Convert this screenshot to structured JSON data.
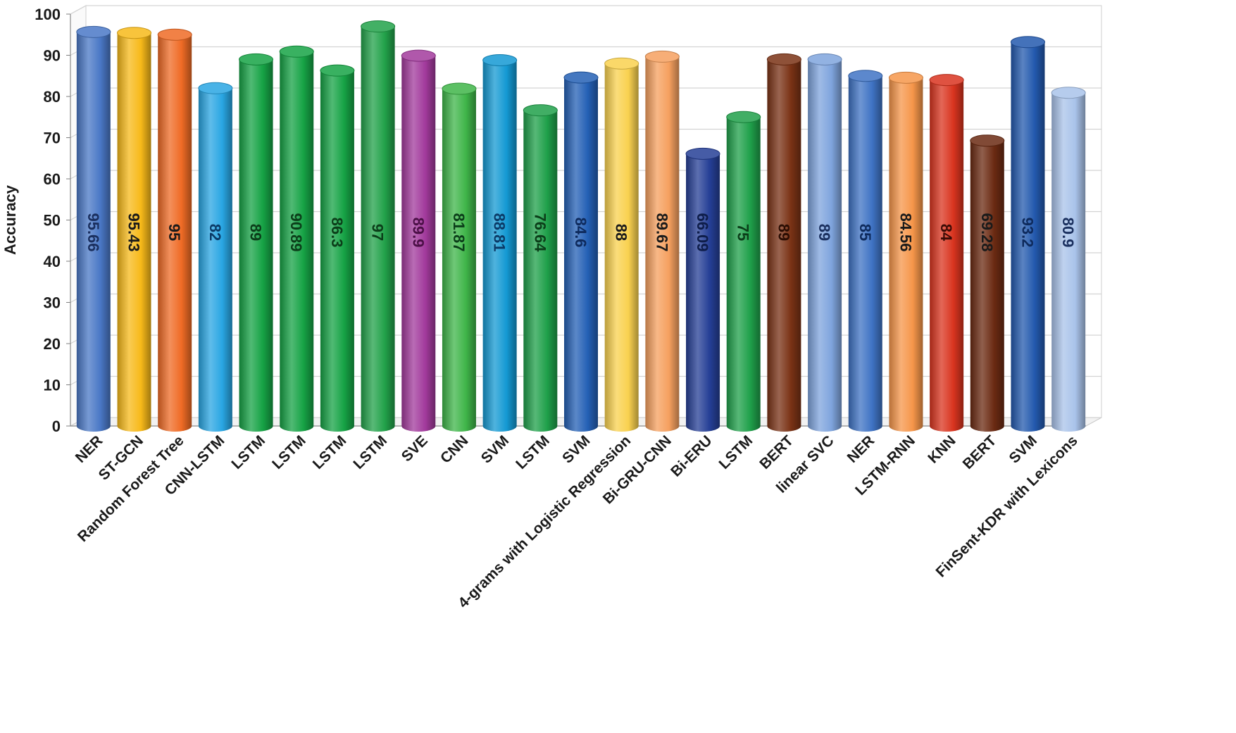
{
  "chart_data": {
    "type": "bar",
    "style": "3d-cylinder",
    "title": "",
    "xlabel": "",
    "ylabel": "Accuracy",
    "ylim": [
      0,
      100
    ],
    "yticks": [
      0,
      10,
      20,
      30,
      40,
      50,
      60,
      70,
      80,
      90,
      100
    ],
    "yticks_text": [
      "0",
      "10",
      "20",
      "30",
      "40",
      "50",
      "60",
      "70",
      "80",
      "90",
      "100"
    ],
    "grid": true,
    "legend": "none",
    "categories": [
      "NER",
      "ST-GCN",
      "Random Forest Tree",
      "CNN-LSTM",
      "LSTM",
      "LSTM",
      "LSTM",
      "LSTM",
      "SVE",
      "CNN",
      "SVM",
      "LSTM",
      "SVM",
      "4-grams with Logistic Regression",
      "Bi-GRU-CNN",
      "Bi-ERU",
      "LSTM",
      "BERT",
      "linear SVC",
      "NER",
      "LSTM-RNN",
      "KNN",
      "BERT",
      "SVM",
      "FinSent-KDR with Lexicons"
    ],
    "values": [
      95.66,
      95.43,
      95,
      82,
      89,
      90.89,
      86.3,
      97,
      89.9,
      81.87,
      88.81,
      76.64,
      84.6,
      88,
      89.67,
      66.09,
      75,
      89,
      89,
      85,
      84.56,
      84,
      69.28,
      93.2,
      80.9
    ],
    "value_labels": [
      "95.66",
      "95.43",
      "95",
      "82",
      "89",
      "90.89",
      "86.3",
      "97",
      "89.9",
      "81.87",
      "88.81",
      "76.64",
      "84.6",
      "88",
      "89.67",
      "66.09",
      "75",
      "89",
      "89",
      "85",
      "84.56",
      "84",
      "69.28",
      "93.2",
      "80.9"
    ],
    "colors": [
      "#4a78c6",
      "#f7b919",
      "#ef6b25",
      "#29a6e3",
      "#16a345",
      "#16a345",
      "#16a345",
      "#22a24a",
      "#a23a9c",
      "#3fb549",
      "#1499d3",
      "#1fa04a",
      "#2460b5",
      "#f9d14f",
      "#f5a05f",
      "#253f96",
      "#1fa04a",
      "#7a3215",
      "#7fa4dd",
      "#3f73c4",
      "#f6964a",
      "#d9341f",
      "#6b2a12",
      "#2359ae",
      "#a9c3ea"
    ],
    "label_colors": [
      "#1a2f5e",
      "#1a1a1a",
      "#1a1a1a",
      "#0b3a66",
      "#0b3d19",
      "#0b3d19",
      "#0b3d19",
      "#0b3d19",
      "#4a0f45",
      "#0b3d19",
      "#0b3a66",
      "#0b3d19",
      "#0e2a5c",
      "#1a1a1a",
      "#1a1a1a",
      "#0e1d4a",
      "#0b3d19",
      "#2a0d03",
      "#1a2f5e",
      "#0e2a5c",
      "#1a1a1a",
      "#3a0b05",
      "#1a1a1a",
      "#0e2a5c",
      "#1a2f5e"
    ]
  }
}
